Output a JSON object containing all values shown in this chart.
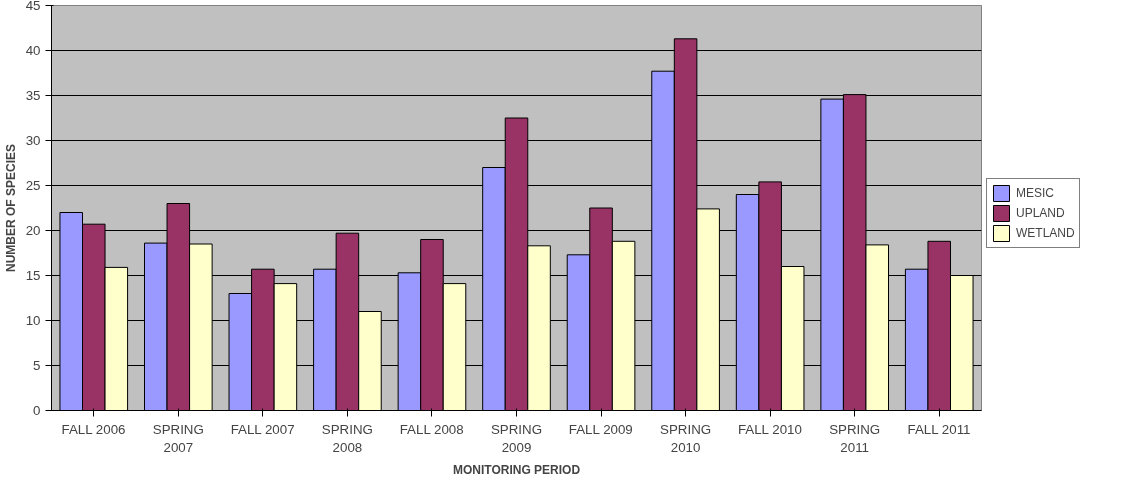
{
  "chart_data": {
    "type": "bar",
    "xlabel": "MONITORING PERIOD",
    "ylabel": "NUMBER OF SPECIES",
    "categories": [
      "FALL 2006",
      "SPRING\n2007",
      "FALL 2007",
      "SPRING\n2008",
      "FALL 2008",
      "SPRING\n2009",
      "FALL 2009",
      "SPRING\n2010",
      "FALL 2010",
      "SPRING\n2011",
      "FALL 2011"
    ],
    "series": [
      {
        "name": "MESIC",
        "color": "#9999ff",
        "values": [
          22,
          18.6,
          13,
          15.7,
          15.3,
          27,
          17.3,
          37.7,
          24,
          34.6,
          15.7
        ]
      },
      {
        "name": "UPLAND",
        "color": "#993366",
        "values": [
          20.7,
          23,
          15.7,
          19.7,
          19,
          32.5,
          22.5,
          41.3,
          25.4,
          35.1,
          18.8
        ]
      },
      {
        "name": "WETLAND",
        "color": "#ffffcc",
        "values": [
          15.9,
          18.5,
          14.1,
          11,
          14.1,
          18.3,
          18.8,
          22.4,
          16,
          18.4,
          15
        ]
      }
    ],
    "ylim": [
      0,
      45
    ],
    "yticks": [
      0,
      5,
      10,
      15,
      20,
      25,
      30,
      35,
      40,
      45
    ],
    "grid": "y",
    "legend": "right"
  }
}
